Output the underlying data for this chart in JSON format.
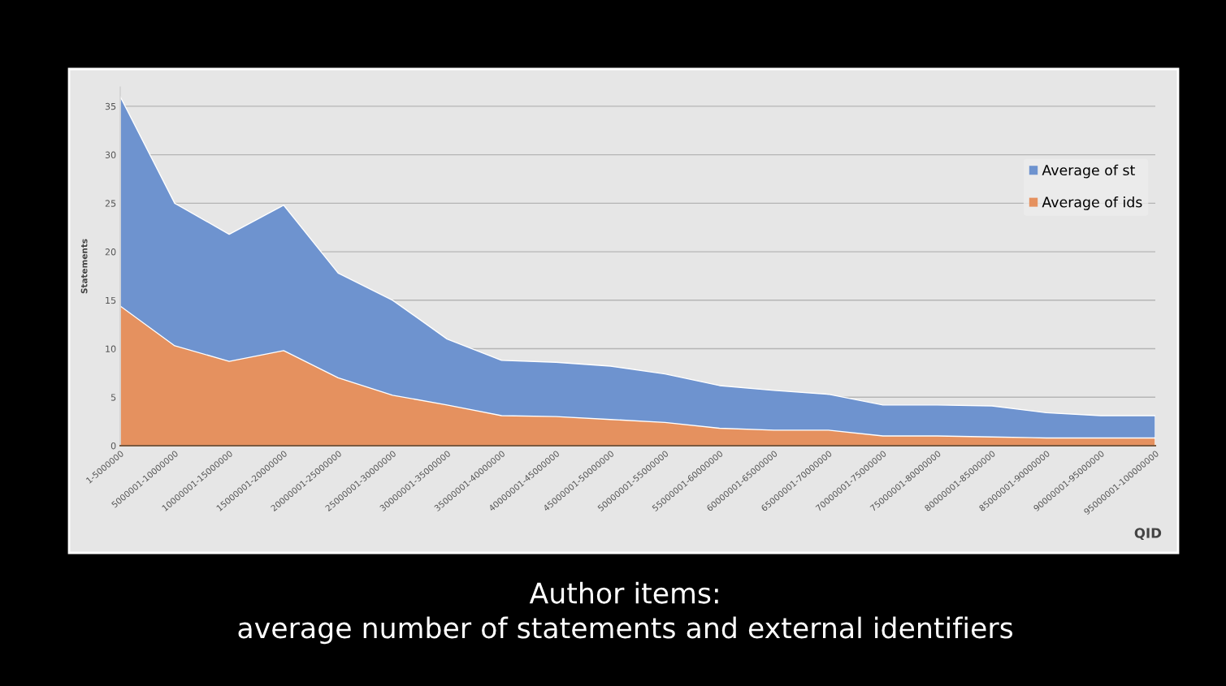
{
  "chart_data": {
    "type": "area",
    "title": "Author items:\naverage number of statements and external identifiers",
    "xlabel": "QID",
    "ylabel": "Statements",
    "categories": [
      "1-5000000",
      "5000001-10000000",
      "10000001-15000000",
      "15000001-20000000",
      "20000001-25000000",
      "25000001-30000000",
      "30000001-35000000",
      "35000001-40000000",
      "40000001-45000000",
      "45000001-50000000",
      "50000001-55000000",
      "55000001-60000000",
      "60000001-65000000",
      "65000001-70000000",
      "70000001-75000000",
      "75000001-80000000",
      "80000001-85000000",
      "85000001-90000000",
      "90000001-95000000",
      "95000001-100000000"
    ],
    "series": [
      {
        "name": "Average of st",
        "color": "#6e93cf",
        "values": [
          36,
          25,
          21.8,
          24.8,
          17.8,
          15,
          11,
          8.8,
          8.6,
          8.2,
          7.4,
          6.2,
          5.7,
          5.3,
          4.2,
          4.2,
          4.1,
          3.4,
          3.1,
          3.1
        ]
      },
      {
        "name": "Average of ids",
        "color": "#e5915f",
        "values": [
          14.4,
          10.3,
          8.7,
          9.8,
          7,
          5.2,
          4.2,
          3.1,
          3.0,
          2.7,
          2.4,
          1.8,
          1.6,
          1.6,
          1.0,
          1.0,
          0.9,
          0.8,
          0.8,
          0.8
        ]
      }
    ],
    "ylim": [
      0,
      37
    ],
    "yticks": [
      0,
      5,
      10,
      15,
      20,
      25,
      30,
      35
    ],
    "grid": "y",
    "legend": "right"
  }
}
